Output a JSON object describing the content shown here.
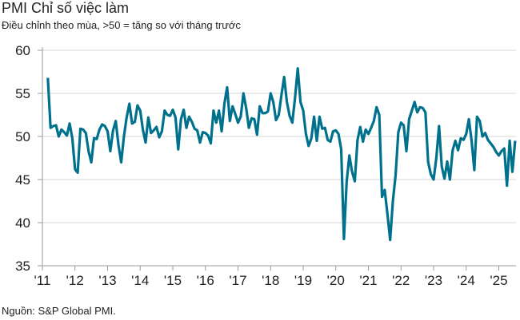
{
  "chart_data": {
    "type": "line",
    "title": "PMI Chỉ số việc làm",
    "subtitle": "Điều chỉnh theo mùa, >50 = tăng so với tháng trước",
    "source": "Nguồn: S&P Global PMI.",
    "xlabel": "",
    "ylabel": "",
    "ylim": [
      35,
      60
    ],
    "yticks": [
      35,
      40,
      45,
      50,
      55,
      60
    ],
    "xticks": [
      "'11",
      "'12",
      "'13",
      "'14",
      "'15",
      "'16",
      "'17",
      "'18",
      "'19",
      "'20",
      "'21",
      "'22",
      "'23",
      "'24",
      "'25"
    ],
    "xtick_years": [
      2011,
      2012,
      2013,
      2014,
      2015,
      2016,
      2017,
      2018,
      2019,
      2020,
      2021,
      2022,
      2023,
      2024,
      2025
    ],
    "grid": true,
    "line_color": "#00718c",
    "start_month": "2011-03",
    "frequency": "monthly",
    "values": [
      56.8,
      51.0,
      51.2,
      51.3,
      50.0,
      50.8,
      50.5,
      50.1,
      51.5,
      49.8,
      46.2,
      45.8,
      50.9,
      50.8,
      50.4,
      48.3,
      47.0,
      49.8,
      49.7,
      50.8,
      51.4,
      51.2,
      50.6,
      48.3,
      50.7,
      51.8,
      49.0,
      47.0,
      50.0,
      52.2,
      53.8,
      51.5,
      51.7,
      53.6,
      53.0,
      50.8,
      49.3,
      52.2,
      50.4,
      50.7,
      51.1,
      49.9,
      50.6,
      53.0,
      52.5,
      52.4,
      53.1,
      52.2,
      48.5,
      52.0,
      53.1,
      51.0,
      52.3,
      51.7,
      50.9,
      50.7,
      49.3,
      50.5,
      50.4,
      50.1,
      49.2,
      53.0,
      51.6,
      53.0,
      50.6,
      53.8,
      55.7,
      51.8,
      53.5,
      52.6,
      51.6,
      52.3,
      55.0,
      53.3,
      51.0,
      52.1,
      52.0,
      50.2,
      53.5,
      52.7,
      52.7,
      52.9,
      55.0,
      54.0,
      51.9,
      52.5,
      54.8,
      56.9,
      54.0,
      52.4,
      51.6,
      54.5,
      57.9,
      54.0,
      53.0,
      50.3,
      48.9,
      49.8,
      52.3,
      49.5,
      52.3,
      50.9,
      51.0,
      49.6,
      49.4,
      50.6,
      50.7,
      50.3,
      48.5,
      38.1,
      44.7,
      47.8,
      45.9,
      44.8,
      49.6,
      51.1,
      49.4,
      50.8,
      50.3,
      51.0,
      51.8,
      53.4,
      52.5,
      43.0,
      43.8,
      41.0,
      38.0,
      42.5,
      45.5,
      50.5,
      51.6,
      51.3,
      48.3,
      52.0,
      53.0,
      54.0,
      52.8,
      53.4,
      53.3,
      52.8,
      47.0,
      45.6,
      45.0,
      47.5,
      51.2,
      46.5,
      45.1,
      47.1,
      45.0,
      48.4,
      49.5,
      48.4,
      49.8,
      49.6,
      50.3,
      52.0,
      49.5,
      46.1,
      52.3,
      51.8,
      50.0,
      50.4,
      49.6,
      49.2,
      48.8,
      48.2,
      47.8,
      48.3,
      48.6,
      44.3,
      49.5,
      45.9,
      49.5
    ]
  }
}
